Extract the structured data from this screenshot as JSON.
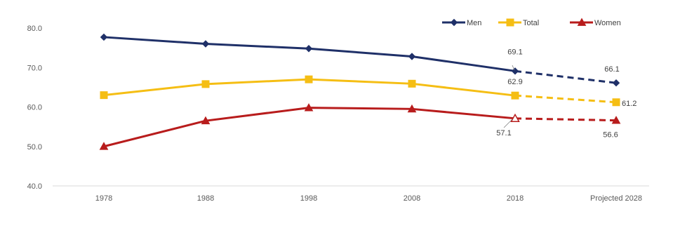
{
  "chart_data": {
    "type": "line",
    "title": "",
    "xlabel": "",
    "ylabel": "",
    "categories": [
      "1978",
      "1988",
      "1998",
      "2008",
      "2018",
      "Projected 2028"
    ],
    "ylim": [
      40.0,
      80.0
    ],
    "yticks": [
      "40.0",
      "50.0",
      "60.0",
      "70.0",
      "80.0"
    ],
    "grid": false,
    "legend_position": "top-right",
    "projected_from_index": 4,
    "series": [
      {
        "name": "Men",
        "color": "#1F3068",
        "marker": "diamond",
        "values": [
          77.7,
          76.0,
          74.8,
          72.8,
          69.1,
          66.1
        ],
        "labels": {
          "4": "69.1",
          "5": "66.1"
        }
      },
      {
        "name": "Total",
        "color": "#F5BE14",
        "marker": "square",
        "values": [
          63.0,
          65.8,
          67.0,
          65.9,
          62.9,
          61.2
        ],
        "labels": {
          "4": "62.9",
          "5": "61.2"
        }
      },
      {
        "name": "Women",
        "color": "#B81C1C",
        "marker": "triangle",
        "values": [
          50.0,
          56.5,
          59.8,
          59.5,
          57.1,
          56.6
        ],
        "labels": {
          "4": "57.1",
          "5": "56.6"
        }
      }
    ]
  }
}
